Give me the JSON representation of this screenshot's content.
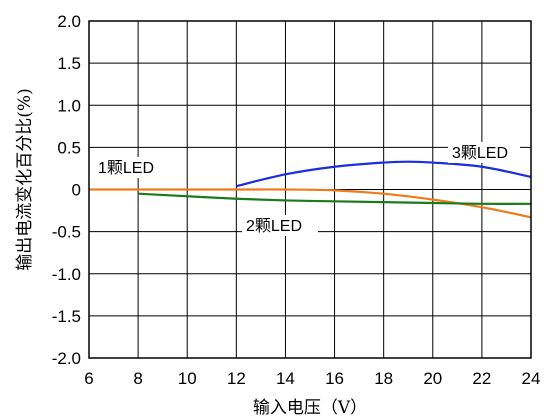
{
  "chart_data": {
    "type": "line",
    "xlabel": "输入电压（V）",
    "ylabel": "输出电流变化百分比(%)",
    "xlim": [
      6,
      24
    ],
    "ylim": [
      -2.0,
      2.0
    ],
    "x_ticks": [
      "6",
      "8",
      "10",
      "12",
      "14",
      "16",
      "18",
      "20",
      "22",
      "24"
    ],
    "y_ticks": [
      "2.0",
      "1.5",
      "1.0",
      "0.5",
      "0",
      "-0.5",
      "-1.0",
      "-1.5",
      "-2.0"
    ],
    "grid": true,
    "series": [
      {
        "name": "1颗LED",
        "color": "#f07a1a",
        "x": [
          6,
          8,
          10,
          12,
          14,
          16,
          18,
          20,
          22,
          24
        ],
        "y": [
          0,
          0,
          0,
          0,
          0,
          -0.01,
          -0.05,
          -0.12,
          -0.21,
          -0.33
        ]
      },
      {
        "name": "2颗LED",
        "color": "#1c7a1c",
        "x": [
          8,
          10,
          12,
          14,
          16,
          18,
          20,
          22,
          24
        ],
        "y": [
          -0.05,
          -0.08,
          -0.11,
          -0.13,
          -0.14,
          -0.15,
          -0.16,
          -0.17,
          -0.17
        ]
      },
      {
        "name": "3颗LED",
        "color": "#1a2ee0",
        "x": [
          12,
          14,
          16,
          18,
          19,
          20,
          22,
          24
        ],
        "y": [
          0.04,
          0.18,
          0.27,
          0.32,
          0.33,
          0.32,
          0.27,
          0.15
        ]
      }
    ],
    "annotations": [
      "1颗LED",
      "2颗LED",
      "3颗LED"
    ]
  }
}
